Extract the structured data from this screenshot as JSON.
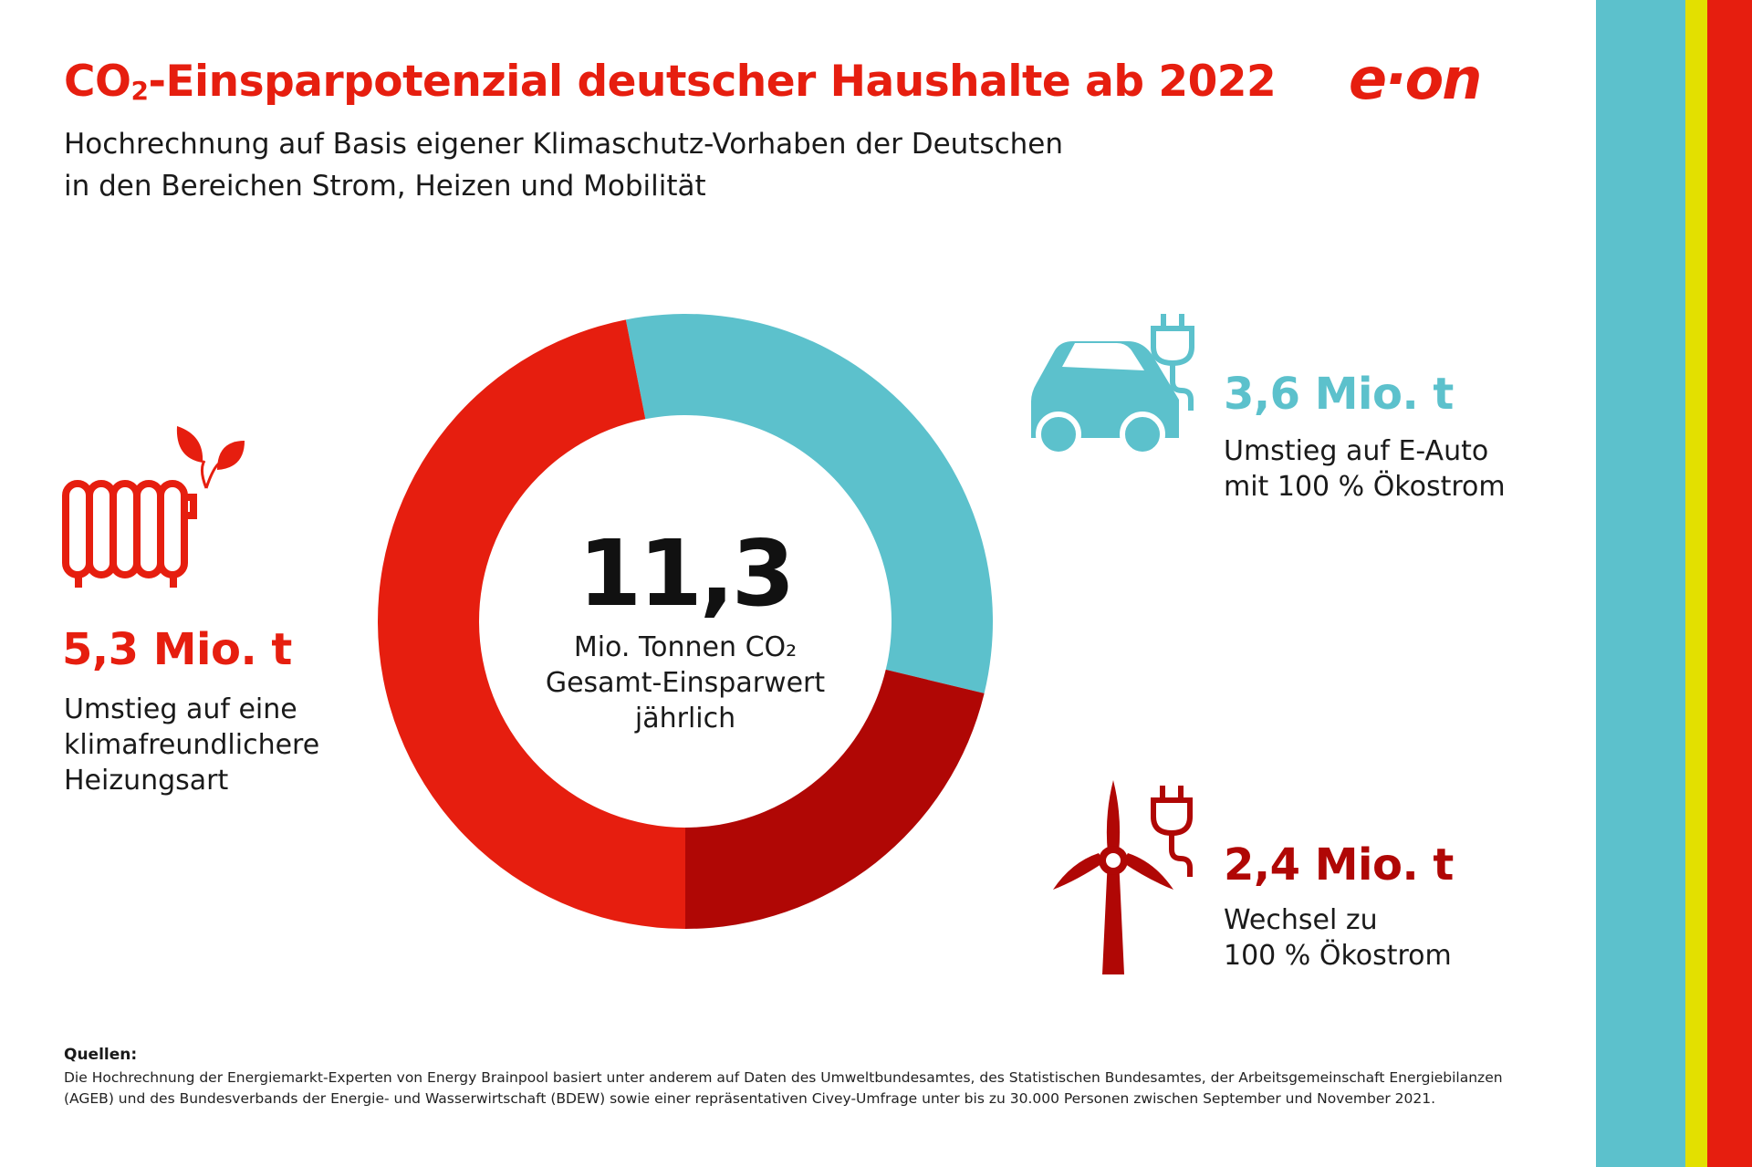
{
  "header": {
    "title_prefix": "CO",
    "title_sub": "2",
    "title_suffix": "-Einsparpotenzial deutscher Haushalte ab 2022",
    "subtitle_line1": "Hochrechnung auf Basis eigener Klimaschutz-Vorhaben der Deutschen",
    "subtitle_line2": "in den Bereichen Strom, Heizen und Mobilität",
    "logo_text": "e·on"
  },
  "colors": {
    "red": "#e61e0f",
    "dark_red": "#b00705",
    "cyan": "#5cc1cc",
    "yellow": "#e3e000"
  },
  "chart_data": {
    "type": "pie",
    "donut": true,
    "total_value": "11,3",
    "total_label_line1": "Mio. Tonnen CO₂",
    "total_label_line2": "Gesamt-Einsparwert",
    "total_label_line3": "jährlich",
    "unit": "Mio. t",
    "series": [
      {
        "name": "Umstieg auf E-Auto mit 100 % Ökostrom",
        "value": 3.6,
        "label": "3,6 Mio. t",
        "desc_line1": "Umstieg auf E-Auto",
        "desc_line2": "mit 100 % Ökostrom",
        "color": "#5cc1cc",
        "icon": "electric-car-icon"
      },
      {
        "name": "Wechsel zu 100 % Ökostrom",
        "value": 2.4,
        "label": "2,4 Mio. t",
        "desc_line1": "Wechsel zu",
        "desc_line2": "100 % Ökostrom",
        "color": "#b00705",
        "icon": "wind-turbine-plug-icon"
      },
      {
        "name": "Umstieg auf eine klimafreundlichere Heizungsart",
        "value": 5.3,
        "label": "5,3 Mio. t",
        "desc_line1": "Umstieg auf eine",
        "desc_line2": "klimafreundlichere",
        "desc_line3": "Heizungsart",
        "color": "#e61e0f",
        "icon": "radiator-leaves-icon"
      }
    ]
  },
  "sources": {
    "heading": "Quellen:",
    "line1": "Die Hochrechnung der Energiemarkt-Experten von Energy Brainpool basiert unter anderem auf Daten des Umweltbundesamtes, des Statistischen Bundesamtes, der Arbeitsgemeinschaft Energiebilanzen",
    "line2": "(AGEB) und des Bundesverbands der Energie- und Wasserwirtschaft (BDEW) sowie einer repräsentativen Civey-Umfrage unter bis zu 30.000 Personen zwischen September und November 2021."
  }
}
